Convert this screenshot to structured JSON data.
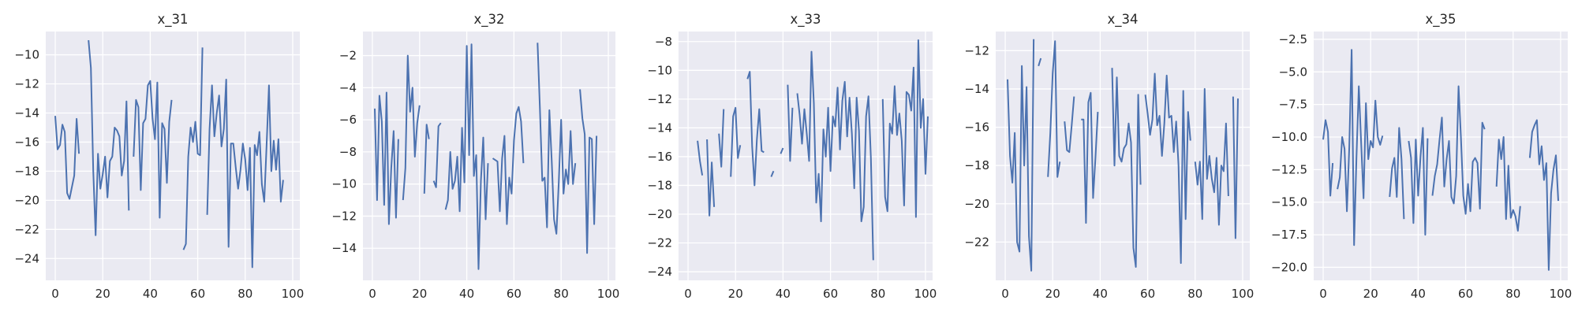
{
  "chart_data": [
    {
      "type": "line",
      "title": "x_31",
      "xlabel": "",
      "ylabel": "",
      "xlim": [
        -4,
        103
      ],
      "ylim": [
        -25.5,
        -8.4
      ],
      "xticks": [
        0,
        20,
        40,
        60,
        80,
        100
      ],
      "yticks": [
        -24,
        -22,
        -20,
        -18,
        -16,
        -14,
        -12,
        -10
      ],
      "grid": true,
      "color": "#4c72b0",
      "x_start": 0,
      "y": [
        -14.2,
        -16.5,
        -16.2,
        -14.8,
        -15.3,
        -19.5,
        -19.9,
        -19.1,
        -18.3,
        -14.4,
        -16.8,
        null,
        null,
        null,
        -9.0,
        -10.9,
        -18.0,
        -22.4,
        -16.8,
        -19.2,
        -18.2,
        -17.0,
        -19.8,
        -17.3,
        -17.0,
        -15.0,
        -15.2,
        -15.6,
        -18.3,
        -17.3,
        -13.2,
        -20.7,
        null,
        -17.0,
        -13.1,
        -13.6,
        -19.3,
        -14.7,
        -14.4,
        -12.1,
        -11.8,
        -14.4,
        -15.8,
        -11.9,
        -21.2,
        -14.7,
        -15.1,
        -18.8,
        -14.6,
        -13.1,
        null,
        null,
        null,
        null,
        -23.4,
        -23.0,
        -17.0,
        -15.0,
        -16.0,
        -14.6,
        -16.8,
        -16.9,
        -9.5,
        null,
        -21.0,
        -15.1,
        -12.1,
        -15.6,
        -14.0,
        -12.8,
        -16.3,
        -15.1,
        -11.7,
        -23.2,
        -16.1,
        -16.1,
        -17.7,
        -19.2,
        -17.9,
        -16.1,
        -17.2,
        -19.3,
        -16.4,
        -24.6,
        -16.2,
        -16.9,
        -15.3,
        -18.9,
        -20.1,
        -16.2,
        -12.1,
        -18.0,
        -15.9,
        -17.9,
        -15.8,
        -20.1,
        -18.6,
        null,
        null,
        null
      ]
    },
    {
      "type": "line",
      "title": "x_32",
      "xlabel": "",
      "ylabel": "",
      "xlim": [
        -4,
        103
      ],
      "ylim": [
        -16.0,
        -0.5
      ],
      "xticks": [
        0,
        20,
        40,
        60,
        80,
        100
      ],
      "yticks": [
        -14,
        -12,
        -10,
        -8,
        -6,
        -4,
        -2
      ],
      "grid": true,
      "color": "#4c72b0",
      "x_start": 0,
      "y": [
        null,
        -5.3,
        -11.0,
        -4.5,
        -6.1,
        -11.3,
        -4.3,
        -12.5,
        -9.0,
        -6.7,
        -12.1,
        -7.2,
        null,
        -11.0,
        -9.0,
        -2.0,
        -5.5,
        -4.0,
        -8.3,
        -6.2,
        -5.1,
        null,
        -10.6,
        -6.3,
        -7.2,
        null,
        -9.8,
        -10.2,
        -6.4,
        -6.2,
        null,
        -11.6,
        -11.0,
        -8.0,
        -10.3,
        -9.8,
        -8.3,
        -11.7,
        -6.5,
        -9.9,
        -1.4,
        -8.2,
        -1.3,
        -9.5,
        -8.2,
        -15.3,
        -9.8,
        -7.1,
        -12.2,
        -8.7,
        null,
        -8.4,
        -8.5,
        -8.6,
        -11.7,
        -8.4,
        -7.0,
        -12.5,
        -9.6,
        -10.6,
        -7.3,
        -5.6,
        -5.2,
        -6.1,
        -8.7,
        null,
        null,
        null,
        null,
        null,
        -1.2,
        -5.3,
        -9.8,
        -9.6,
        -12.7,
        -5.4,
        -8.6,
        -12.2,
        -13.1,
        -9.9,
        -6.0,
        -10.6,
        -9.1,
        -10.0,
        -6.7,
        -10.0,
        -8.7,
        null,
        -4.1,
        -5.9,
        -6.9,
        -14.3,
        -7.1,
        -7.2,
        -12.5,
        -7.0,
        null,
        null,
        null,
        null
      ]
    },
    {
      "type": "line",
      "title": "x_33",
      "xlabel": "",
      "ylabel": "",
      "xlim": [
        -4,
        103
      ],
      "ylim": [
        -24.6,
        -7.3
      ],
      "xticks": [
        0,
        20,
        40,
        60,
        80,
        100
      ],
      "yticks": [
        -24,
        -22,
        -20,
        -18,
        -16,
        -14,
        -12,
        -10,
        -8
      ],
      "grid": true,
      "color": "#4c72b0",
      "x_start": 0,
      "y": [
        null,
        null,
        null,
        null,
        -14.9,
        -16.3,
        -17.3,
        null,
        -14.8,
        -20.1,
        -16.4,
        -19.5,
        null,
        -14.4,
        -16.7,
        -12.7,
        null,
        null,
        -17.4,
        -13.2,
        -12.6,
        -16.1,
        -15.2,
        null,
        null,
        -10.6,
        -10.1,
        -15.3,
        -18.0,
        -14.8,
        -12.7,
        -15.6,
        -15.7,
        null,
        null,
        -17.4,
        -17.0,
        null,
        null,
        -15.8,
        -15.4,
        null,
        -11.0,
        -16.3,
        -12.6,
        null,
        -11.6,
        -13.1,
        -15.1,
        -12.7,
        -14.4,
        -16.3,
        -8.7,
        -12.3,
        -19.2,
        -17.2,
        -20.5,
        -14.1,
        -16.0,
        -12.6,
        -17.0,
        -13.2,
        -13.9,
        -11.2,
        -15.5,
        -12.1,
        -10.8,
        -14.6,
        -11.9,
        -14.4,
        -18.2,
        -11.9,
        -14.2,
        -20.5,
        -19.5,
        -13.2,
        -11.8,
        -16.1,
        -23.2,
        null,
        null,
        null,
        -12.0,
        -18.8,
        -19.8,
        -13.7,
        -14.4,
        -11.1,
        -14.5,
        -13.0,
        -14.9,
        -19.4,
        -11.5,
        -11.7,
        -12.8,
        -9.8,
        -20.2,
        -7.9,
        -14.0,
        -12.0,
        -17.2,
        -13.2
      ]
    },
    {
      "type": "line",
      "title": "x_34",
      "xlabel": "",
      "ylabel": "",
      "xlim": [
        -4,
        103
      ],
      "ylim": [
        -24.0,
        -11.0
      ],
      "xticks": [
        0,
        20,
        40,
        60,
        80,
        100
      ],
      "yticks": [
        -22,
        -20,
        -18,
        -16,
        -14,
        -12
      ],
      "grid": true,
      "color": "#4c72b0",
      "x_start": 0,
      "y": [
        null,
        -13.5,
        -17.5,
        -18.9,
        -16.3,
        -22.0,
        -22.5,
        -12.8,
        -18.0,
        -13.9,
        -21.7,
        -23.5,
        -11.4,
        null,
        -12.8,
        -12.4,
        null,
        null,
        -18.6,
        -16.3,
        -13.2,
        -11.5,
        -18.6,
        -17.8,
        null,
        -15.7,
        -17.2,
        -17.3,
        -15.9,
        -14.4,
        null,
        null,
        -15.6,
        -15.6,
        -21.0,
        -14.7,
        -14.2,
        -19.7,
        -17.6,
        -15.2,
        null,
        null,
        null,
        null,
        null,
        -12.9,
        -18.0,
        -13.4,
        -17.5,
        -17.8,
        -17.1,
        -16.9,
        -15.8,
        -16.8,
        -22.3,
        -23.3,
        -14.3,
        -19.0,
        null,
        -14.3,
        -15.3,
        -16.4,
        -15.6,
        -13.2,
        -15.9,
        -15.4,
        -17.5,
        -15.8,
        -13.3,
        -15.5,
        -15.4,
        -17.3,
        -15.7,
        -18.0,
        -23.1,
        -14.1,
        -20.8,
        -15.2,
        -16.7,
        null,
        -17.8,
        -19.0,
        -17.8,
        -20.8,
        -14.0,
        -18.7,
        -17.5,
        -18.7,
        -19.4,
        -17.6,
        -21.1,
        -18.0,
        -18.3,
        -15.8,
        -19.6,
        null,
        -14.4,
        -21.8,
        -14.5,
        null,
        null
      ]
    },
    {
      "type": "line",
      "title": "x_35",
      "xlabel": "",
      "ylabel": "",
      "xlim": [
        -4,
        103
      ],
      "ylim": [
        -21.0,
        -1.9
      ],
      "xticks": [
        0,
        20,
        40,
        60,
        80,
        100
      ],
      "yticks": [
        -20.0,
        -17.5,
        -15.0,
        -12.5,
        -10.0,
        -7.5,
        -5.0,
        -2.5
      ],
      "grid": true,
      "color": "#4c72b0",
      "x_start": 0,
      "y": [
        -10.2,
        -8.7,
        -9.6,
        -14.5,
        -12.0,
        null,
        -14.0,
        -13.1,
        -10.0,
        -10.9,
        -15.7,
        -10.8,
        -3.3,
        -18.3,
        -11.6,
        -6.1,
        -10.5,
        -14.7,
        -7.4,
        -11.7,
        -10.3,
        -10.8,
        -7.2,
        -10.0,
        -10.6,
        -9.9,
        null,
        null,
        -14.6,
        -12.4,
        -11.6,
        -14.6,
        -9.3,
        -11.7,
        -16.3,
        null,
        -10.3,
        -11.6,
        -16.6,
        -10.2,
        -14.5,
        -11.5,
        -9.3,
        -17.5,
        -10.1,
        null,
        -14.5,
        -13.0,
        -12.1,
        -10.2,
        -8.5,
        -13.8,
        -11.7,
        -10.3,
        -14.6,
        -15.1,
        -13.0,
        -6.1,
        -10.0,
        -14.5,
        -15.9,
        -13.6,
        -15.7,
        -11.9,
        -11.6,
        -12.0,
        -15.5,
        -8.9,
        -9.4,
        null,
        null,
        null,
        null,
        -13.8,
        -10.2,
        -11.7,
        -10.0,
        -16.3,
        -12.2,
        -16.2,
        -15.6,
        -16.1,
        -17.2,
        -15.3,
        null,
        null,
        null,
        -11.6,
        -9.6,
        -9.1,
        -8.7,
        -12.1,
        -10.7,
        -13.3,
        -12.0,
        -20.2,
        -14.3,
        -12.5,
        -11.4,
        -14.9
      ]
    }
  ]
}
